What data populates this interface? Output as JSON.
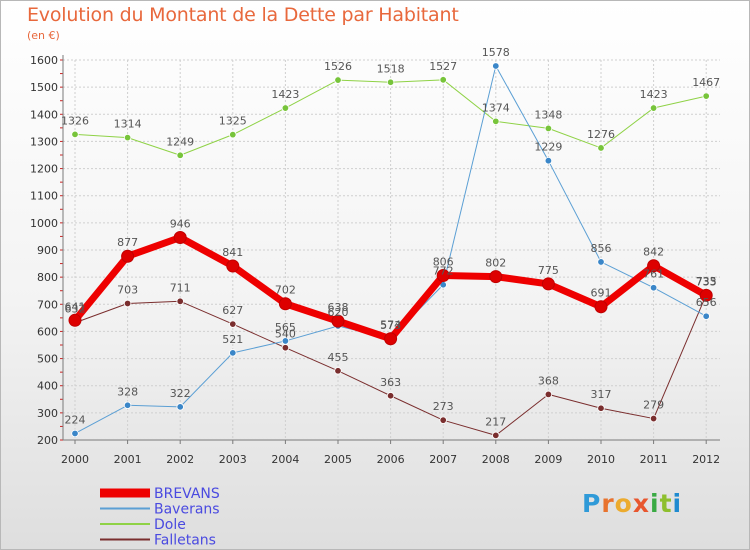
{
  "header": {
    "title": "Evolution du Montant de la Dette par Habitant",
    "unit": "(en €)"
  },
  "brand": {
    "letters": [
      "P",
      "r",
      "o",
      "x",
      "i",
      "t",
      "i"
    ],
    "colors": [
      "#2f9ad8",
      "#e8732e",
      "#ecab2e",
      "#e8562e",
      "#3aaa44",
      "#8ebf2e",
      "#1f8bd0"
    ]
  },
  "colors": {
    "grid": "#cfcfcf",
    "axis": "#7a7a7a",
    "tick_label": "#333333",
    "value_label": "#555555",
    "legend_text": "#4a4ae0"
  },
  "chart_data": {
    "type": "line",
    "x": [
      "2000",
      "2001",
      "2002",
      "2003",
      "2004",
      "2005",
      "2006",
      "2007",
      "2008",
      "2009",
      "2010",
      "2011",
      "2012"
    ],
    "ylim": [
      200,
      1600
    ],
    "yticks": [
      200,
      300,
      400,
      500,
      600,
      700,
      800,
      900,
      1000,
      1100,
      1200,
      1300,
      1400,
      1500,
      1600
    ],
    "grid": true,
    "legend_position": "bottom-left",
    "series": [
      {
        "name": "Dole",
        "color": "#8fd246",
        "marker": "#77c43a",
        "width": 1,
        "values": [
          1326,
          1314,
          1249,
          1325,
          1423,
          1526,
          1518,
          1527,
          1374,
          1348,
          1276,
          1423,
          1467
        ]
      },
      {
        "name": "Falletans",
        "color": "#7a2e2e",
        "marker": "#7a2e2e",
        "width": 1,
        "values": [
          632,
          703,
          711,
          627,
          540,
          455,
          363,
          273,
          217,
          368,
          317,
          279,
          735
        ]
      },
      {
        "name": "Baverans",
        "color": "#5b9fd4",
        "marker": "#3a86c8",
        "width": 1,
        "values": [
          224,
          328,
          322,
          521,
          565,
          620,
          574,
          772,
          1578,
          1229,
          856,
          761,
          656
        ]
      },
      {
        "name": "BREVANS",
        "color": "#ee0000",
        "marker": "#dd0000",
        "width": 7,
        "values": [
          641,
          877,
          946,
          841,
          702,
          638,
          573,
          806,
          802,
          775,
          691,
          842,
          733
        ]
      }
    ]
  }
}
